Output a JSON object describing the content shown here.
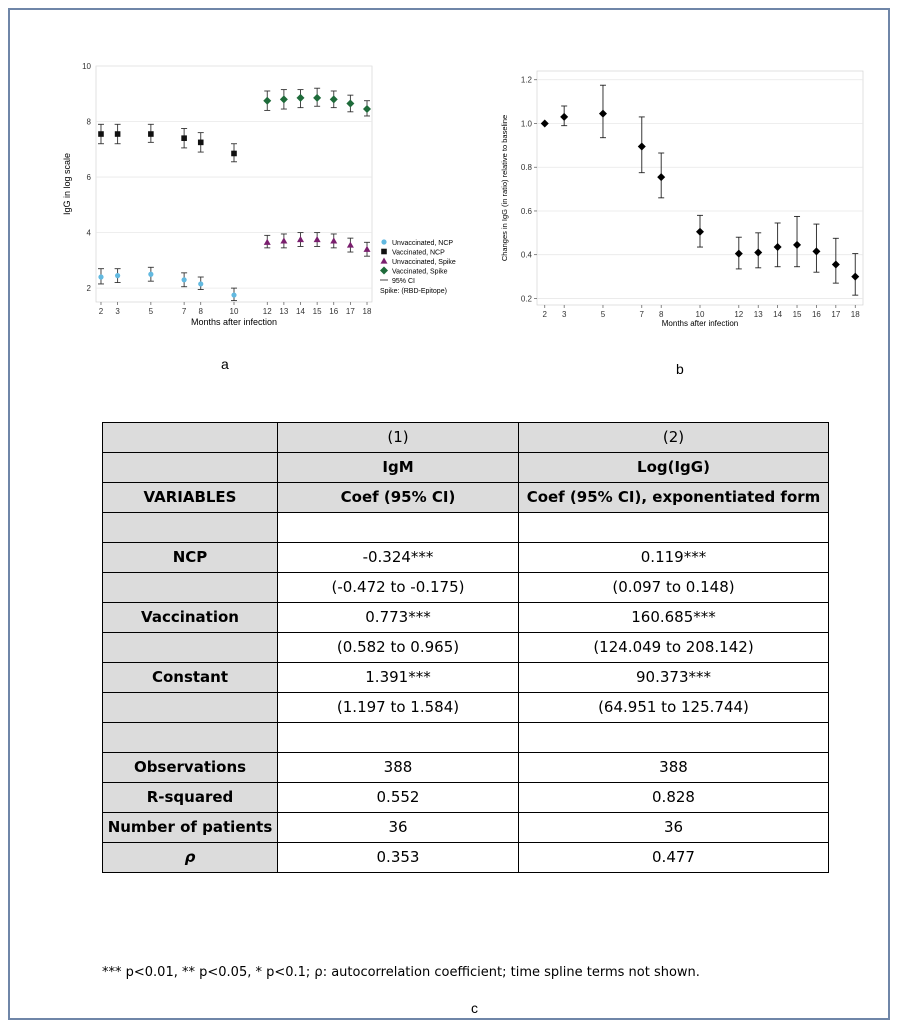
{
  "labels": {
    "a": "a",
    "b": "b",
    "c": "c"
  },
  "chart_data": [
    {
      "type": "scatter",
      "panel": "a",
      "xlabel": "Months after infection",
      "ylabel": "IgG in log scale",
      "x_ticks": [
        2,
        3,
        5,
        7,
        8,
        10,
        12,
        13,
        14,
        15,
        16,
        17,
        18
      ],
      "y_ticks": [
        2,
        4,
        6,
        8,
        10
      ],
      "ylim": [
        1.5,
        10
      ],
      "xlim": [
        1.7,
        18.3
      ],
      "legend_position": "right",
      "grid": true,
      "error_bars": "95% CI",
      "series": [
        {
          "name": "Unvaccinated, NCP",
          "color": "#62b9e0",
          "marker": "circle",
          "x": [
            2,
            3,
            5,
            7,
            8,
            10
          ],
          "y": [
            2.4,
            2.45,
            2.5,
            2.3,
            2.15,
            1.75
          ],
          "lo": [
            2.15,
            2.2,
            2.25,
            2.05,
            1.95,
            1.55
          ],
          "hi": [
            2.7,
            2.7,
            2.75,
            2.55,
            2.4,
            2.0
          ]
        },
        {
          "name": "Vaccinated, NCP",
          "color": "#111111",
          "marker": "square",
          "x": [
            2,
            3,
            5,
            7,
            8,
            10
          ],
          "y": [
            7.55,
            7.55,
            7.55,
            7.4,
            7.25,
            6.85
          ],
          "lo": [
            7.2,
            7.2,
            7.25,
            7.05,
            6.9,
            6.55
          ],
          "hi": [
            7.9,
            7.9,
            7.9,
            7.75,
            7.6,
            7.2
          ]
        },
        {
          "name": "Unvaccinated, Spike",
          "color": "#7a1f6e",
          "marker": "triangle",
          "x": [
            12,
            13,
            14,
            15,
            16,
            17,
            18
          ],
          "y": [
            3.65,
            3.7,
            3.75,
            3.75,
            3.7,
            3.55,
            3.4
          ],
          "lo": [
            3.45,
            3.45,
            3.5,
            3.5,
            3.45,
            3.3,
            3.15
          ],
          "hi": [
            3.9,
            3.95,
            4.0,
            4.0,
            3.95,
            3.8,
            3.65
          ]
        },
        {
          "name": "Vaccinated, Spike",
          "color": "#1e6b3a",
          "marker": "diamond",
          "x": [
            12,
            13,
            14,
            15,
            16,
            17,
            18
          ],
          "y": [
            8.75,
            8.8,
            8.85,
            8.85,
            8.8,
            8.65,
            8.45
          ],
          "lo": [
            8.4,
            8.45,
            8.5,
            8.55,
            8.5,
            8.35,
            8.2
          ],
          "hi": [
            9.1,
            9.15,
            9.15,
            9.2,
            9.1,
            8.95,
            8.75
          ]
        }
      ],
      "legend_extra": [
        "95% CI",
        "Spike: (RBD-Epitope)"
      ]
    },
    {
      "type": "scatter",
      "panel": "b",
      "xlabel": "Months after infection",
      "ylabel": "Changes in IgG (in ratio) relative to baseline",
      "x_ticks": [
        2,
        3,
        5,
        7,
        8,
        10,
        12,
        13,
        14,
        15,
        16,
        17,
        18
      ],
      "y_ticks": [
        0.2,
        0.4,
        0.6,
        0.8,
        1.0,
        1.2
      ],
      "ylim": [
        0.17,
        1.24
      ],
      "xlim": [
        1.6,
        18.4
      ],
      "grid": true,
      "series": [
        {
          "marker": "diamond",
          "color": "#000000",
          "x": [
            2,
            3,
            5,
            7,
            8,
            10,
            12,
            13,
            14,
            15,
            16,
            17,
            18
          ],
          "y": [
            1.0,
            1.03,
            1.045,
            0.895,
            0.755,
            0.505,
            0.405,
            0.41,
            0.435,
            0.445,
            0.415,
            0.355,
            0.3
          ],
          "lo": [
            1.0,
            0.99,
            0.935,
            0.775,
            0.66,
            0.435,
            0.335,
            0.34,
            0.345,
            0.345,
            0.32,
            0.27,
            0.215
          ],
          "hi": [
            1.0,
            1.08,
            1.175,
            1.03,
            0.865,
            0.58,
            0.48,
            0.5,
            0.545,
            0.575,
            0.54,
            0.475,
            0.405
          ]
        }
      ]
    },
    {
      "type": "table",
      "panel": "c",
      "header_rows": [
        [
          "",
          "(1)",
          "(2)"
        ],
        [
          "",
          "IgM",
          "Log(IgG)"
        ],
        [
          "VARIABLES",
          "Coef (95% CI)",
          "Coef (95% CI), exponentiated form"
        ]
      ],
      "rows": [
        [
          "",
          "",
          ""
        ],
        [
          "NCP",
          "-0.324***",
          "0.119***"
        ],
        [
          "",
          "(-0.472 to -0.175)",
          "(0.097 to 0.148)"
        ],
        [
          "Vaccination",
          "0.773***",
          "160.685***"
        ],
        [
          "",
          "(0.582 to 0.965)",
          "(124.049 to 208.142)"
        ],
        [
          "Constant",
          "1.391***",
          "90.373***"
        ],
        [
          "",
          "(1.197 to 1.584)",
          "(64.951 to 125.744)"
        ],
        [
          "",
          "",
          ""
        ],
        [
          "Observations",
          "388",
          "388"
        ],
        [
          "R-squared",
          "0.552",
          "0.828"
        ],
        [
          "Number of patients",
          "36",
          "36"
        ],
        [
          "ρ",
          "0.353",
          "0.477"
        ]
      ],
      "footnote": "*** p<0.01, ** p<0.05, * p<0.1; ρ: autocorrelation coefficient; time spline terms not shown."
    }
  ]
}
